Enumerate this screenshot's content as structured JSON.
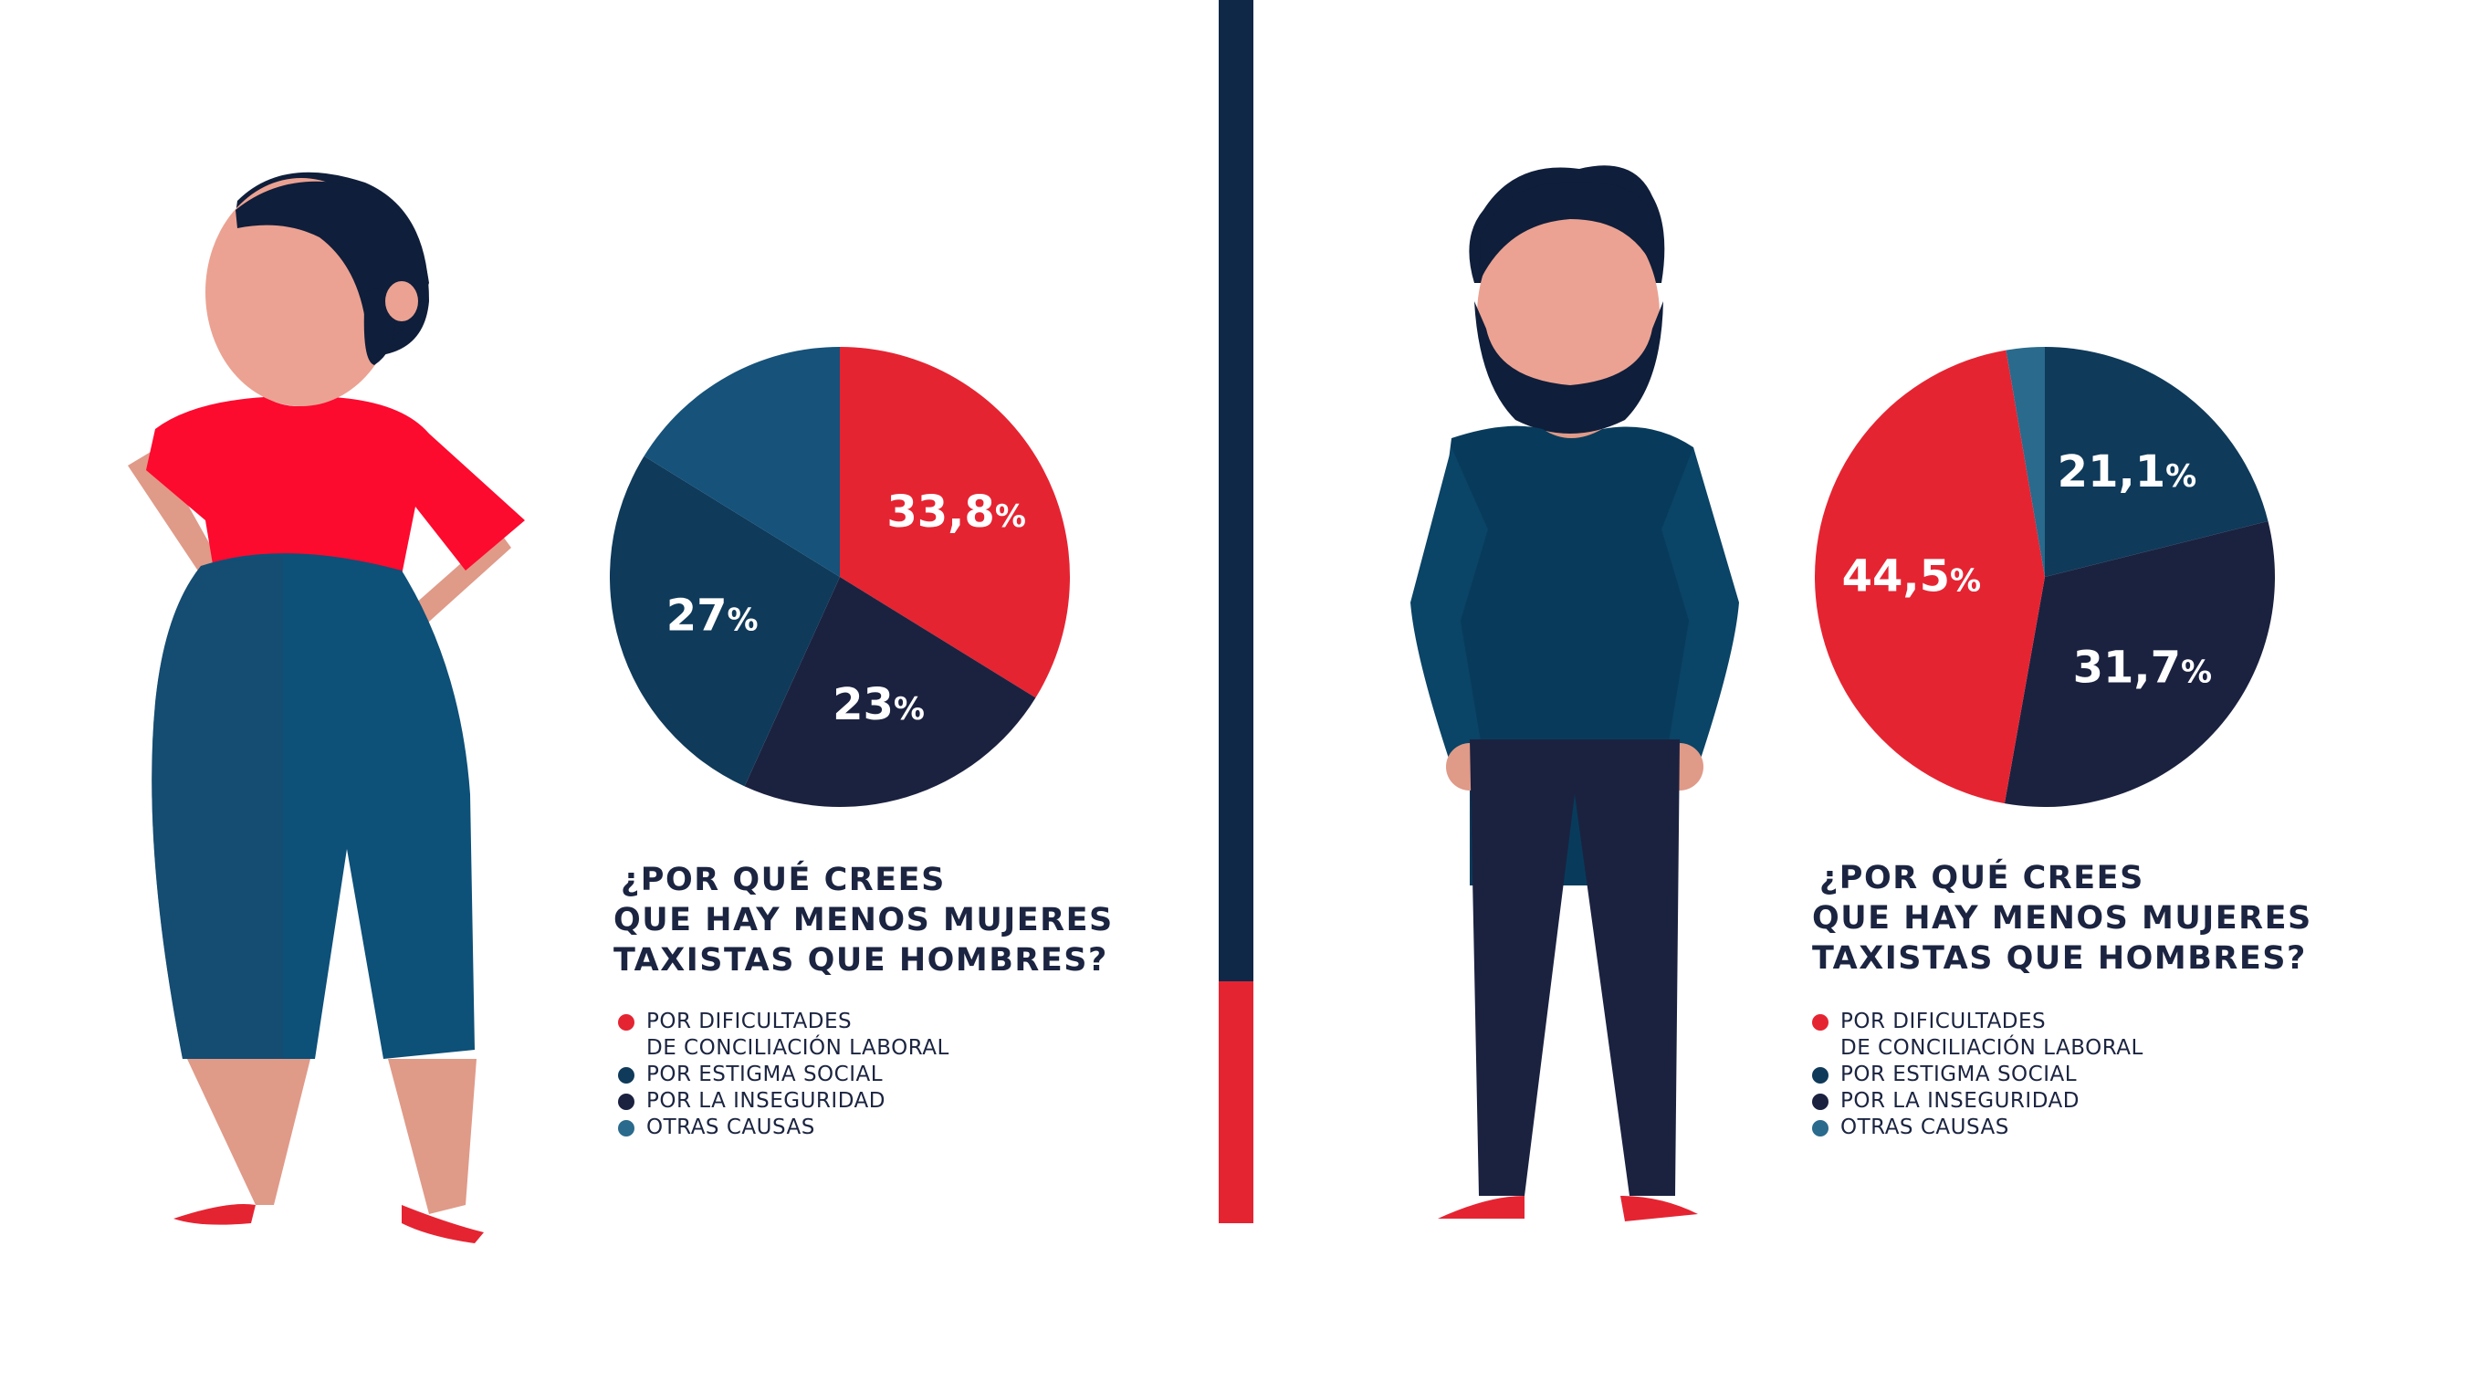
{
  "colors": {
    "dificultades": "#e52432",
    "estigma": "#0f3a5a",
    "inseguridad": "#1b2240",
    "otras": "#16527a",
    "legend_otras": "#2a6a8c",
    "divider_top": "#0f2847",
    "divider_bottom": "#e52432"
  },
  "panels": [
    {
      "figure_icon": "woman-illustration",
      "question": [
        "¿POR QUÉ CREES",
        "QUE HAY MENOS MUJERES",
        "TAXISTAS QUE HOMBRES?"
      ],
      "legend": [
        {
          "label": "POR DIFICULTADES\nDE CONCILIACIÓN LABORAL",
          "key": "dificultades"
        },
        {
          "label": "POR ESTIGMA SOCIAL",
          "key": "estigma"
        },
        {
          "label": "POR LA INSEGURIDAD",
          "key": "inseguridad"
        },
        {
          "label": "OTRAS CAUSAS",
          "key": "legend_otras"
        }
      ]
    },
    {
      "figure_icon": "man-illustration",
      "question": [
        "¿POR QUÉ CREES",
        "QUE HAY MENOS MUJERES",
        "TAXISTAS QUE HOMBRES?"
      ],
      "legend": [
        {
          "label": "POR DIFICULTADES\nDE CONCILIACIÓN LABORAL",
          "key": "dificultades"
        },
        {
          "label": "POR ESTIGMA SOCIAL",
          "key": "estigma"
        },
        {
          "label": "POR LA INSEGURIDAD",
          "key": "inseguridad"
        },
        {
          "label": "OTRAS CAUSAS",
          "key": "legend_otras"
        }
      ]
    }
  ],
  "chart_data": [
    {
      "type": "pie",
      "title": "¿POR QUÉ CREES QUE HAY MENOS MUJERES TAXISTAS QUE HOMBRES?",
      "direction": "clockwise-from-top",
      "slices": [
        {
          "name": "POR DIFICULTADES DE CONCILIACIÓN LABORAL",
          "value": 33.8,
          "label": "33,8",
          "color": "#e52432"
        },
        {
          "name": "POR LA INSEGURIDAD",
          "value": 23,
          "label": "23",
          "color": "#1b2240"
        },
        {
          "name": "POR ESTIGMA SOCIAL",
          "value": 27,
          "label": "27",
          "color": "#0f3a5a"
        },
        {
          "name": "OTRAS CAUSAS",
          "value": 16.2,
          "label": "",
          "color": "#16527a"
        }
      ],
      "percent_sign": "%"
    },
    {
      "type": "pie",
      "title": "¿POR QUÉ CREES QUE HAY MENOS MUJERES TAXISTAS QUE HOMBRES?",
      "direction": "clockwise-from-top",
      "slices": [
        {
          "name": "POR ESTIGMA SOCIAL",
          "value": 21.1,
          "label": "21,1",
          "color": "#0f3a5a"
        },
        {
          "name": "POR LA INSEGURIDAD",
          "value": 31.7,
          "label": "31,7",
          "color": "#1b2240"
        },
        {
          "name": "POR DIFICULTADES DE CONCILIACIÓN LABORAL",
          "value": 44.5,
          "label": "44,5",
          "color": "#e52432"
        },
        {
          "name": "OTRAS CAUSAS",
          "value": 2.7,
          "label": "",
          "color": "#2a6a8c"
        }
      ],
      "percent_sign": "%"
    }
  ]
}
